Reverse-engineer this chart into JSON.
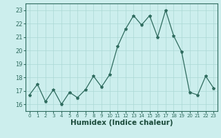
{
  "x": [
    0,
    1,
    2,
    3,
    4,
    5,
    6,
    7,
    8,
    9,
    10,
    11,
    12,
    13,
    14,
    15,
    16,
    17,
    18,
    19,
    20,
    21,
    22,
    23
  ],
  "y": [
    16.7,
    17.5,
    16.2,
    17.1,
    16.0,
    16.9,
    16.5,
    17.1,
    18.1,
    17.3,
    18.2,
    20.3,
    21.6,
    22.6,
    21.9,
    22.6,
    21.0,
    23.0,
    21.1,
    19.9,
    16.9,
    16.7,
    18.1,
    17.2
  ],
  "xlim": [
    -0.5,
    23.5
  ],
  "ylim": [
    15.5,
    23.5
  ],
  "yticks": [
    16,
    17,
    18,
    19,
    20,
    21,
    22,
    23
  ],
  "xticks": [
    0,
    1,
    2,
    3,
    4,
    5,
    6,
    7,
    8,
    9,
    10,
    11,
    12,
    13,
    14,
    15,
    16,
    17,
    18,
    19,
    20,
    21,
    22,
    23
  ],
  "xlabel": "Humidex (Indice chaleur)",
  "line_color": "#2e6b5e",
  "marker": "*",
  "marker_size": 3,
  "bg_color": "#cceeed",
  "grid_color": "#aad8d4",
  "tick_color": "#2e6b5e",
  "label_color": "#1a4a3a",
  "tick_fontsize": 6,
  "xlabel_fontsize": 7.5
}
